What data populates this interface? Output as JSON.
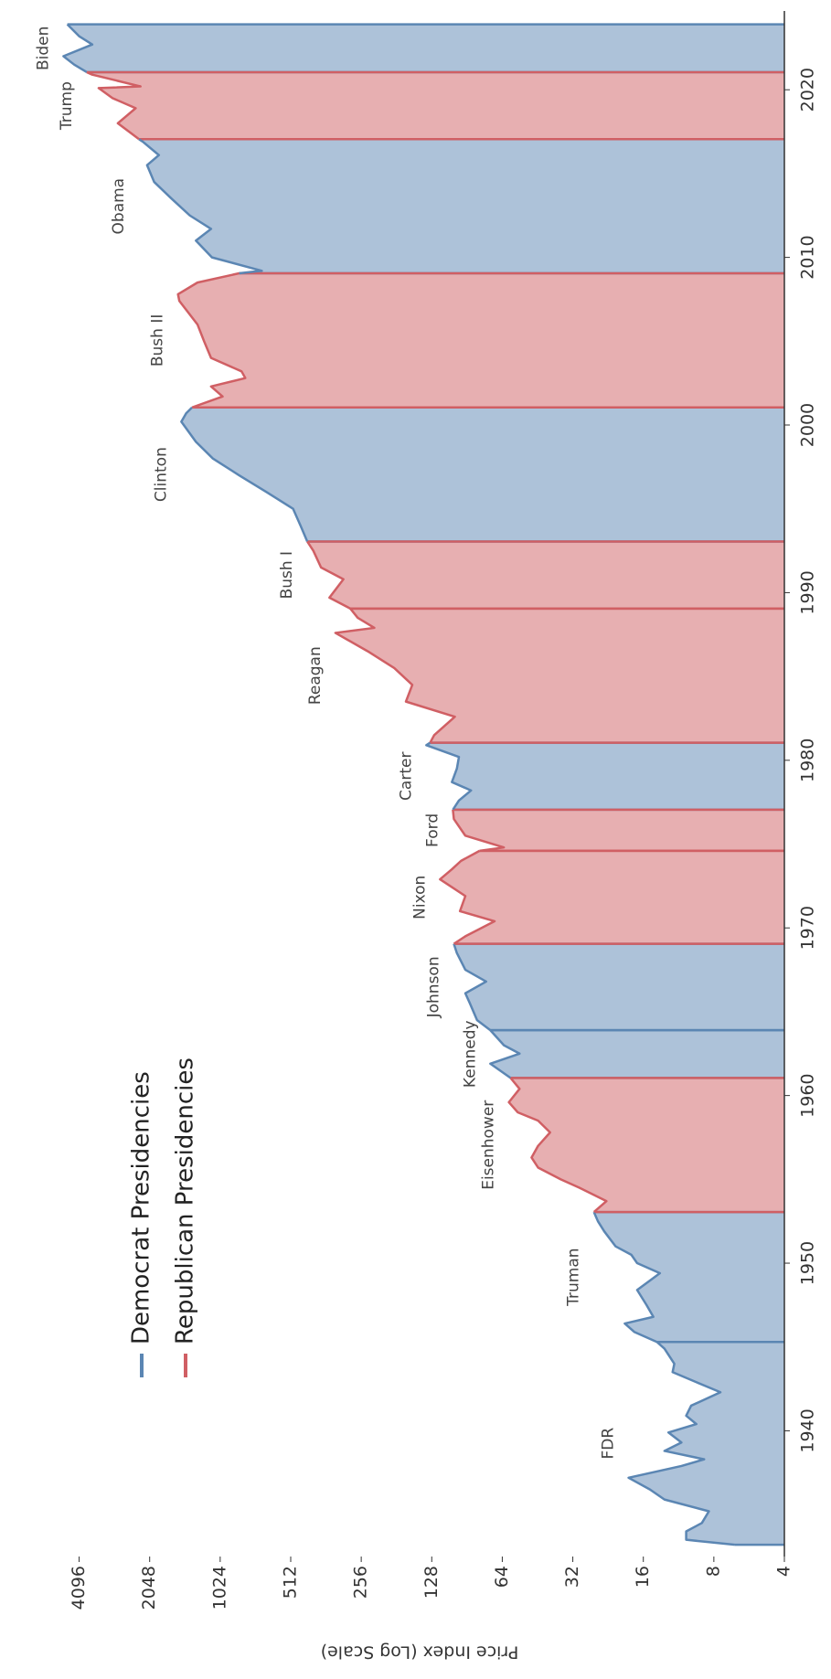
{
  "chart_data": {
    "type": "area",
    "ylabel": "Price Index (Log Scale)",
    "yscale": "log",
    "legend": "upper left",
    "xlim": [
      1932.5,
      2024.7
    ],
    "xticks": [
      1940,
      1950,
      1960,
      1970,
      1980,
      1990,
      2000,
      2010,
      2020
    ],
    "ylim": [
      4,
      5200
    ],
    "yticks": [
      4,
      8,
      16,
      32,
      64,
      128,
      256,
      512,
      1024,
      2048,
      4096
    ],
    "x": [
      1933.2,
      1933.5,
      1934,
      1934.5,
      1935.2,
      1935.9,
      1936.5,
      1937.2,
      1937.9,
      1938.3,
      1938.8,
      1939.3,
      1939.9,
      1940.4,
      1940.9,
      1941.5,
      1942.3,
      1942.9,
      1943.5,
      1944,
      1944.9,
      1945.3,
      1945.9,
      1946.4,
      1946.8,
      1947.5,
      1948.4,
      1949.4,
      1950,
      1950.5,
      1951,
      1951.9,
      1952.5,
      1953.05,
      1953.7,
      1954.5,
      1955,
      1955.7,
      1956.3,
      1957,
      1957.8,
      1958.5,
      1959,
      1959.6,
      1960.4,
      1961.05,
      1961.9,
      1962.5,
      1963,
      1963.9,
      1964.5,
      1965.5,
      1966.1,
      1966.8,
      1967.5,
      1968.5,
      1969.05,
      1969.5,
      1970.4,
      1971,
      1971.9,
      1972.9,
      1973.5,
      1974,
      1974.6,
      1974.8,
      1975.5,
      1976.5,
      1977.05,
      1977.6,
      1978.2,
      1978.7,
      1979.5,
      1980.2,
      1980.9,
      1981.05,
      1981.5,
      1982.6,
      1983.5,
      1984.5,
      1985.5,
      1986.5,
      1987.6,
      1987.9,
      1988.5,
      1989.05,
      1989.7,
      1990.8,
      1991.5,
      1992.5,
      1993.05,
      1994,
      1995,
      1996,
      1997,
      1998,
      1999,
      2000.2,
      2000.7,
      2001.05,
      2001.7,
      2002.3,
      2002.8,
      2003.2,
      2004,
      2005,
      2006,
      2007.4,
      2007.8,
      2008.5,
      2009.05,
      2009.2,
      2010,
      2011,
      2011.7,
      2012.5,
      2013.5,
      2014.5,
      2015.5,
      2016.1,
      2016.9,
      2017.05,
      2018,
      2018.9,
      2019.5,
      2020.1,
      2020.2,
      2020.9,
      2021.05,
      2021.5,
      2022,
      2022.7,
      2023.2,
      2023.9
    ],
    "values": [
      6.5,
      10.5,
      10.5,
      9,
      8.4,
      13,
      15,
      18.5,
      11,
      8.8,
      13,
      11,
      12.5,
      9.5,
      10.5,
      10,
      7.5,
      9.5,
      12,
      11.8,
      13,
      14,
      17.5,
      19.2,
      14.5,
      15.5,
      17,
      13.6,
      17,
      18,
      21,
      23.5,
      25,
      26,
      23,
      30,
      36,
      45,
      48,
      45,
      40,
      45,
      55,
      60,
      54,
      59,
      72,
      54,
      63,
      72,
      82,
      88,
      92,
      75,
      92,
      100,
      103,
      92,
      69,
      97,
      92,
      118,
      105,
      96,
      80,
      63,
      92,
      103,
      104,
      98,
      87,
      105,
      100,
      98,
      135,
      130,
      125,
      102,
      165,
      155,
      185,
      240,
      330,
      225,
      265,
      285,
      350,
      305,
      380,
      410,
      435,
      465,
      500,
      650,
      850,
      1100,
      1300,
      1500,
      1430,
      1350,
      1000,
      1120,
      800,
      830,
      1120,
      1200,
      1280,
      1530,
      1550,
      1280,
      850,
      680,
      1110,
      1300,
      1120,
      1380,
      1650,
      1960,
      2100,
      1870,
      2190,
      2275,
      2800,
      2350,
      2950,
      3380,
      2240,
      3600,
      3800,
      4300,
      4780,
      3600,
      4100,
      4600
    ],
    "series": [
      {
        "name": "Democrat Presidencies",
        "color": "#5b86b3",
        "presidents": [
          {
            "label": "FDR",
            "start": 1933.2,
            "end": 1945.3
          },
          {
            "label": "Truman",
            "start": 1945.3,
            "end": 1953.05
          },
          {
            "label": "Kennedy",
            "start": 1961.05,
            "end": 1963.9
          },
          {
            "label": "Johnson",
            "start": 1963.9,
            "end": 1969.05
          },
          {
            "label": "Carter",
            "start": 1977.05,
            "end": 1981.05
          },
          {
            "label": "Clinton",
            "start": 1993.05,
            "end": 2001.05
          },
          {
            "label": "Obama",
            "start": 2009.05,
            "end": 2017.05
          },
          {
            "label": "Biden",
            "start": 2021.05,
            "end": 2023.9
          }
        ]
      },
      {
        "name": "Republican Presidencies",
        "color": "#d05f64",
        "presidents": [
          {
            "label": "Eisenhower",
            "start": 1953.05,
            "end": 1961.05
          },
          {
            "label": "Nixon",
            "start": 1969.05,
            "end": 1974.6
          },
          {
            "label": "Ford",
            "start": 1974.6,
            "end": 1977.05
          },
          {
            "label": "Reagan",
            "start": 1981.05,
            "end": 1989.05
          },
          {
            "label": "Bush I",
            "start": 1989.05,
            "end": 1993.05
          },
          {
            "label": "Bush II",
            "start": 2001.05,
            "end": 2009.05
          },
          {
            "label": "Trump",
            "start": 2017.05,
            "end": 2021.05
          }
        ]
      }
    ]
  }
}
